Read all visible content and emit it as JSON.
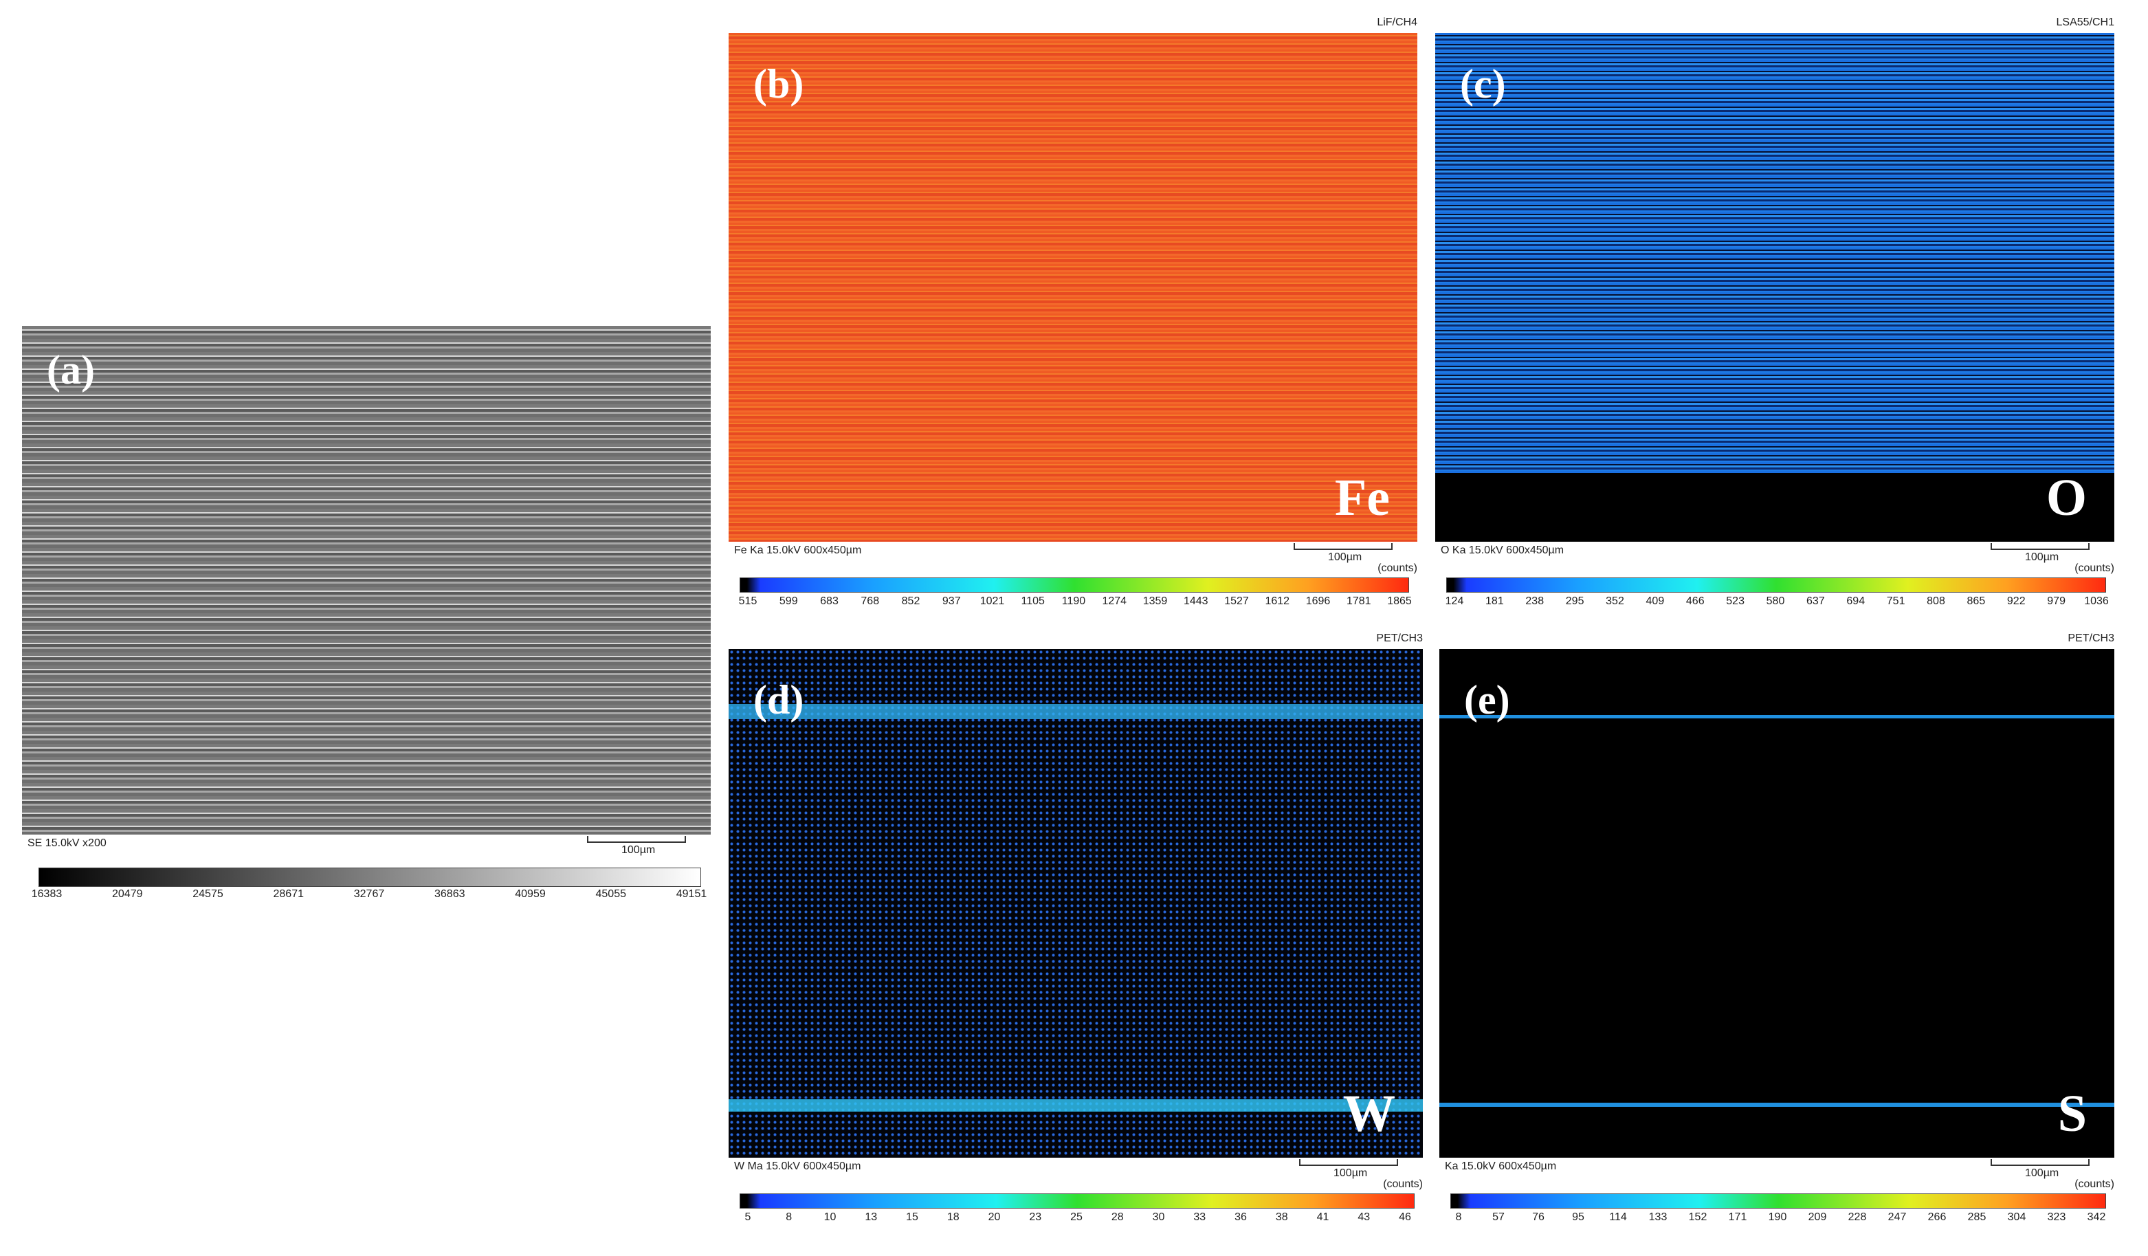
{
  "panels": [
    {
      "label": "(a)",
      "footer": "SE 15.0kV x200",
      "scale_bar": "100µm",
      "colorbar_ticks": [
        16383,
        20479,
        24575,
        28671,
        32767,
        36863,
        40959,
        45055,
        49151
      ]
    },
    {
      "label": "(b)",
      "element": "Fe",
      "header": "LiF/CH4",
      "footer": "Fe Ka 15.0kV  600x450µm",
      "scale_bar": "100µm",
      "units": "(counts)",
      "colorbar_ticks": [
        515,
        599,
        683,
        768,
        852,
        937,
        1021,
        1105,
        1190,
        1274,
        1359,
        1443,
        1527,
        1612,
        1696,
        1781,
        1865
      ]
    },
    {
      "label": "(c)",
      "element": "O",
      "header": "LSA55/CH1",
      "footer": "O Ka 15.0kV  600x450µm",
      "scale_bar": "100µm",
      "units": "(counts)",
      "colorbar_ticks": [
        124,
        181,
        238,
        295,
        352,
        409,
        466,
        523,
        580,
        637,
        694,
        751,
        808,
        865,
        922,
        979,
        1036
      ]
    },
    {
      "label": "(d)",
      "element": "W",
      "header": "PET/CH3",
      "footer": "W Ma 15.0kV  600x450µm",
      "scale_bar": "100µm",
      "units": "(counts)",
      "colorbar_ticks": [
        5,
        8,
        10,
        13,
        15,
        18,
        20,
        23,
        25,
        28,
        30,
        33,
        36,
        38,
        41,
        43,
        46
      ]
    },
    {
      "label": "(e)",
      "element": "S",
      "header": "PET/CH3",
      "footer": "Ka 15.0kV  600x450µm",
      "scale_bar": "100µm",
      "units": "(counts)",
      "colorbar_ticks": [
        8,
        57,
        76,
        95,
        114,
        133,
        152,
        171,
        190,
        209,
        228,
        247,
        266,
        285,
        304,
        323,
        342
      ]
    }
  ]
}
